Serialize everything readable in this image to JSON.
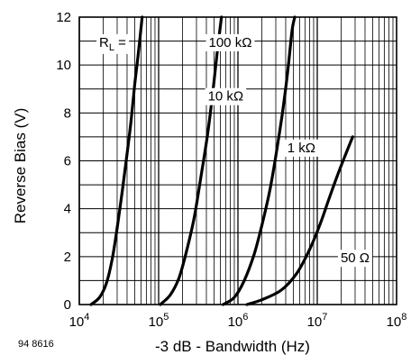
{
  "figure_id": "94 8616",
  "chart_data": {
    "type": "line",
    "xlabel": "-3 dB - Bandwidth (Hz)",
    "ylabel": "Reverse Bias (V)",
    "x_scale": "log",
    "xlim": [
      10000,
      100000000
    ],
    "ylim": [
      0,
      12
    ],
    "grid": true,
    "x_ticks": [
      {
        "value": 10000,
        "base": "10",
        "exp": "4"
      },
      {
        "value": 100000,
        "base": "10",
        "exp": "5"
      },
      {
        "value": 1000000,
        "base": "10",
        "exp": "6"
      },
      {
        "value": 10000000,
        "base": "10",
        "exp": "7"
      },
      {
        "value": 100000000,
        "base": "10",
        "exp": "8"
      }
    ],
    "y_ticks": [
      0,
      2,
      4,
      6,
      8,
      10,
      12
    ],
    "legend_prefix": {
      "main": "R",
      "sub": "L",
      "suffix": " ="
    },
    "series": [
      {
        "name": "100 kΩ",
        "label_x": 800000,
        "label_y": 10.95,
        "points": [
          [
            14000,
            0
          ],
          [
            18000,
            0.3
          ],
          [
            22000,
            0.9
          ],
          [
            26000,
            1.9
          ],
          [
            30000,
            3.2
          ],
          [
            35000,
            4.8
          ],
          [
            40000,
            6.3
          ],
          [
            45000,
            7.7
          ],
          [
            50000,
            9.2
          ],
          [
            56000,
            10.6
          ],
          [
            62000,
            12
          ]
        ]
      },
      {
        "name": "10 kΩ",
        "label_x": 700000,
        "label_y": 8.7,
        "points": [
          [
            105000,
            0
          ],
          [
            140000,
            0.4
          ],
          [
            180000,
            1.1
          ],
          [
            220000,
            2.1
          ],
          [
            280000,
            3.6
          ],
          [
            340000,
            5.3
          ],
          [
            410000,
            7.0
          ],
          [
            480000,
            8.8
          ],
          [
            550000,
            10.6
          ],
          [
            620000,
            12
          ]
        ]
      },
      {
        "name": "1 kΩ",
        "label_x": 6300000,
        "label_y": 6.55,
        "points": [
          [
            650000,
            0
          ],
          [
            900000,
            0.3
          ],
          [
            1200000,
            1.0
          ],
          [
            1600000,
            2.1
          ],
          [
            2000000,
            3.3
          ],
          [
            2500000,
            4.7
          ],
          [
            3000000,
            6.2
          ],
          [
            3600000,
            7.9
          ],
          [
            4200000,
            9.6
          ],
          [
            4800000,
            11.4
          ],
          [
            5200000,
            12
          ]
        ]
      },
      {
        "name": "50 Ω",
        "label_x": 30000000,
        "label_y": 1.95,
        "points": [
          [
            1300000,
            0
          ],
          [
            2000000,
            0.2
          ],
          [
            3500000,
            0.6
          ],
          [
            5500000,
            1.3
          ],
          [
            8000000,
            2.3
          ],
          [
            11000000,
            3.4
          ],
          [
            14000000,
            4.4
          ],
          [
            18000000,
            5.4
          ],
          [
            23000000,
            6.3
          ],
          [
            28000000,
            7.0
          ]
        ]
      }
    ]
  }
}
